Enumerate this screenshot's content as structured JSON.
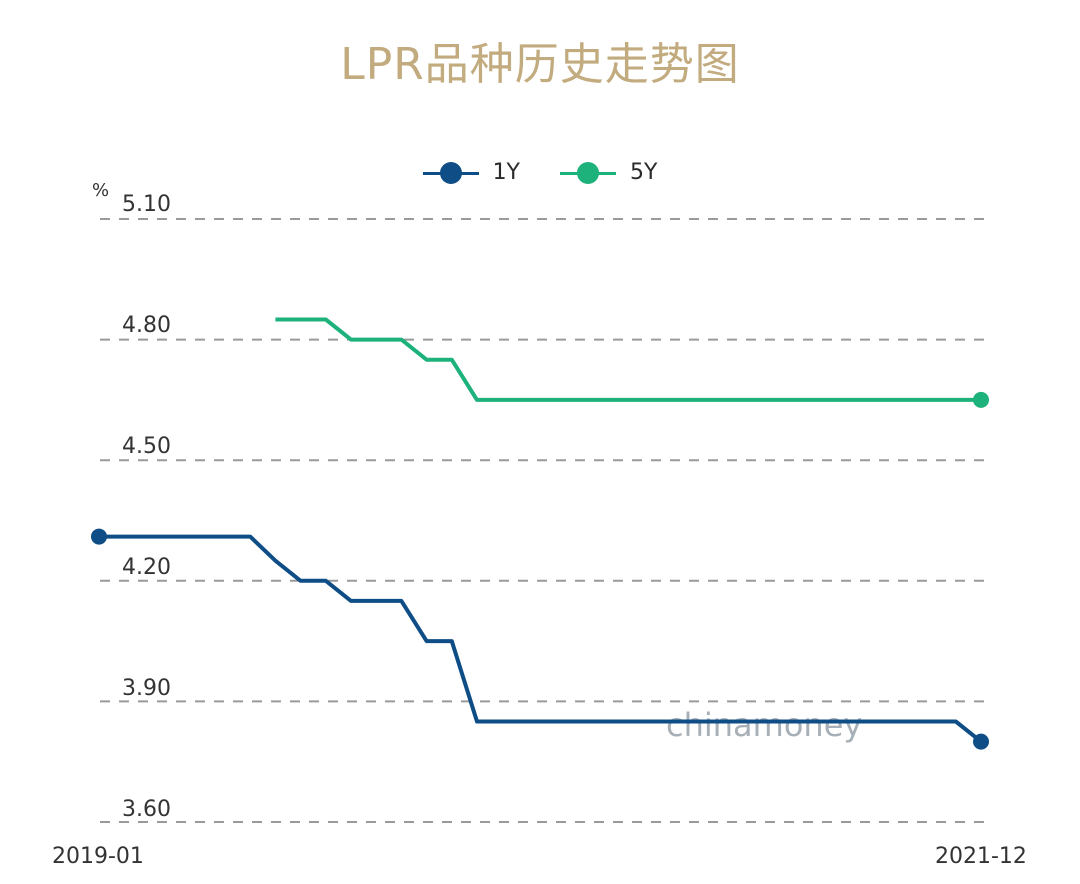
{
  "chart_data": {
    "type": "line",
    "title": "LPR品种历史走势图",
    "unit": "%",
    "x_ticks": [
      "2019-01",
      "2021-12"
    ],
    "x": [
      "2019-01",
      "2019-02",
      "2019-03",
      "2019-04",
      "2019-05",
      "2019-06",
      "2019-07",
      "2019-08",
      "2019-09",
      "2019-10",
      "2019-11",
      "2019-12",
      "2020-01",
      "2020-02",
      "2020-03",
      "2020-04",
      "2020-05",
      "2020-06",
      "2020-07",
      "2020-08",
      "2020-09",
      "2020-10",
      "2020-11",
      "2020-12",
      "2021-01",
      "2021-02",
      "2021-03",
      "2021-04",
      "2021-05",
      "2021-06",
      "2021-07",
      "2021-08",
      "2021-09",
      "2021-10",
      "2021-11",
      "2021-12"
    ],
    "series": [
      {
        "name": "1Y",
        "color": "#0e4d85",
        "values": [
          4.31,
          4.31,
          4.31,
          4.31,
          4.31,
          4.31,
          4.31,
          4.25,
          4.2,
          4.2,
          4.15,
          4.15,
          4.15,
          4.05,
          4.05,
          3.85,
          3.85,
          3.85,
          3.85,
          3.85,
          3.85,
          3.85,
          3.85,
          3.85,
          3.85,
          3.85,
          3.85,
          3.85,
          3.85,
          3.85,
          3.85,
          3.85,
          3.85,
          3.85,
          3.85,
          3.8
        ]
      },
      {
        "name": "5Y",
        "color": "#1db27b",
        "values": [
          null,
          null,
          null,
          null,
          null,
          null,
          null,
          4.85,
          4.85,
          4.85,
          4.8,
          4.8,
          4.8,
          4.75,
          4.75,
          4.65,
          4.65,
          4.65,
          4.65,
          4.65,
          4.65,
          4.65,
          4.65,
          4.65,
          4.65,
          4.65,
          4.65,
          4.65,
          4.65,
          4.65,
          4.65,
          4.65,
          4.65,
          4.65,
          4.65,
          4.65
        ]
      }
    ],
    "yticks": [
      "5.10",
      "4.80",
      "4.50",
      "4.20",
      "3.90",
      "3.60"
    ],
    "ylim": [
      3.6,
      5.1
    ],
    "grid": true,
    "legend": "top-center",
    "watermark": "chinamoney"
  }
}
